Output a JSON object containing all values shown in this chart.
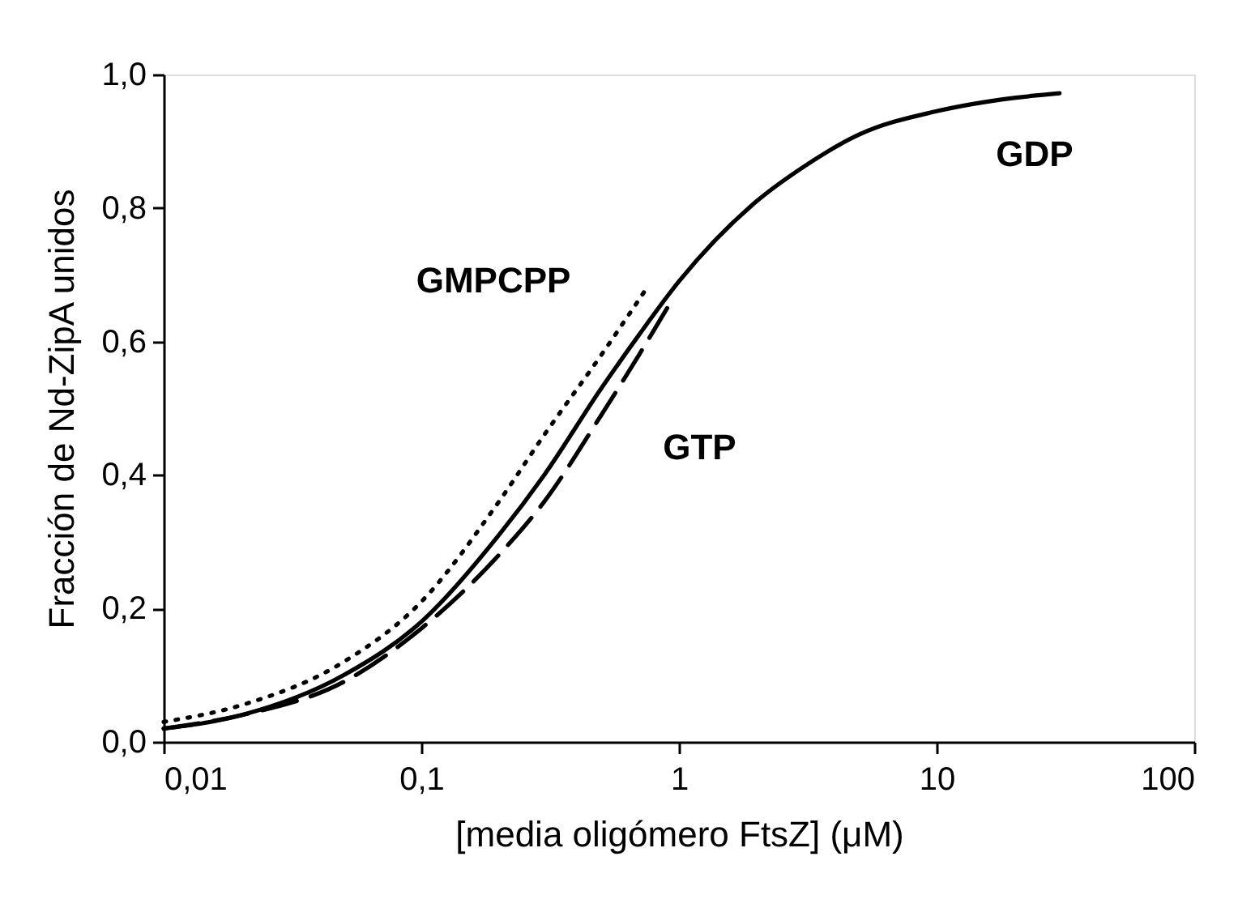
{
  "chart_data": {
    "type": "line",
    "xlabel": "[media oligómero FtsZ] (μM)",
    "ylabel": "Fracción de Nd-ZipA unidos",
    "log": "x",
    "grid": false,
    "marker": "none",
    "xlim": [
      0.01,
      100
    ],
    "xticks": [
      {
        "value": 0.01,
        "label": "0,01"
      },
      {
        "value": 0.1,
        "label": "0,1"
      },
      {
        "value": 1,
        "label": "1"
      },
      {
        "value": 10,
        "label": "10"
      },
      {
        "value": 100,
        "label": "100"
      }
    ],
    "ylim": [
      0,
      1
    ],
    "yticks": [
      {
        "value": 0,
        "label": "0,0"
      },
      {
        "value": 0.2,
        "label": "0,2"
      },
      {
        "value": 0.4,
        "label": "0,4"
      },
      {
        "value": 0.6,
        "label": "0,6"
      },
      {
        "value": 0.8,
        "label": "0,8"
      },
      {
        "value": 1,
        "label": "1,0"
      }
    ],
    "series": [
      {
        "name": "GDP",
        "color": "#000000",
        "line_style": "solid",
        "x": [
          0.01,
          0.02,
          0.05,
          0.1,
          0.2,
          0.3,
          0.5,
          0.7,
          1,
          2,
          3,
          5,
          10,
          20,
          30
        ],
        "values": [
          0.02,
          0.04,
          0.1,
          0.18,
          0.31,
          0.4,
          0.53,
          0.61,
          0.69,
          0.81,
          0.86,
          0.91,
          0.945,
          0.965,
          0.972
        ]
      },
      {
        "name": "GMPCPP",
        "color": "#000000",
        "line_style": "dotted",
        "x": [
          0.01,
          0.02,
          0.05,
          0.1,
          0.2,
          0.3,
          0.5,
          0.75
        ],
        "values": [
          0.03,
          0.055,
          0.12,
          0.21,
          0.36,
          0.46,
          0.58,
          0.68
        ]
      },
      {
        "name": "GTP",
        "color": "#000000",
        "line_style": "dashed",
        "x": [
          0.01,
          0.02,
          0.05,
          0.1,
          0.2,
          0.3,
          0.5,
          0.7,
          0.9
        ],
        "values": [
          0.02,
          0.04,
          0.09,
          0.17,
          0.28,
          0.36,
          0.49,
          0.58,
          0.65
        ]
      }
    ]
  }
}
